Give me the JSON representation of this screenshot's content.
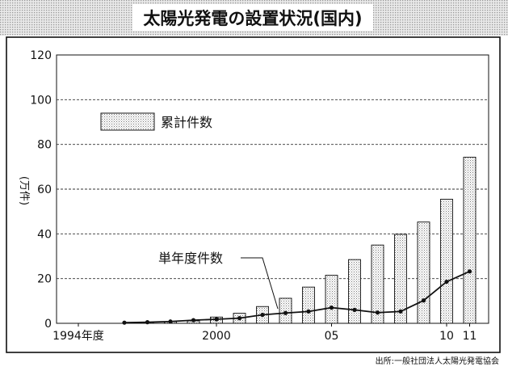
{
  "chart_data": {
    "type": "bar",
    "title": "太陽光発電の設置状況(国内)",
    "ylabel": "(万件)",
    "ylim": [
      0,
      120
    ],
    "yticks": [
      0,
      20,
      40,
      60,
      80,
      100,
      120
    ],
    "x_tick_labels": [
      {
        "year": 1994,
        "label": "1994年度"
      },
      {
        "year": 2000,
        "label": "2000"
      },
      {
        "year": 2005,
        "label": "05"
      },
      {
        "year": 2010,
        "label": "10"
      },
      {
        "year": 2011,
        "label": "11"
      }
    ],
    "grid": true,
    "legend": {
      "position": "top-left",
      "label": "累計件数"
    },
    "series": [
      {
        "name": "累計件数",
        "type": "bar",
        "x": [
          1997,
          1998,
          1999,
          2000,
          2001,
          2002,
          2003,
          2004,
          2005,
          2006,
          2007,
          2008,
          2009,
          2010,
          2011
        ],
        "values": [
          0.4,
          0.7,
          1.1,
          2.8,
          4.5,
          7.5,
          11.2,
          16.2,
          21.5,
          28.5,
          35.0,
          39.8,
          45.3,
          55.5,
          74.3
        ]
      },
      {
        "name": "単年度件数",
        "type": "line",
        "x": [
          1996,
          1997,
          1998,
          1999,
          2000,
          2001,
          2002,
          2003,
          2004,
          2005,
          2006,
          2007,
          2008,
          2009,
          2010,
          2011
        ],
        "values": [
          0.3,
          0.5,
          0.8,
          1.4,
          1.8,
          2.3,
          3.8,
          4.6,
          5.3,
          7.0,
          6.0,
          4.8,
          5.3,
          10.2,
          18.6,
          23.2
        ]
      }
    ],
    "annotation": "単年度件数",
    "source": "出所:一般社団法人太陽光発電協会"
  }
}
